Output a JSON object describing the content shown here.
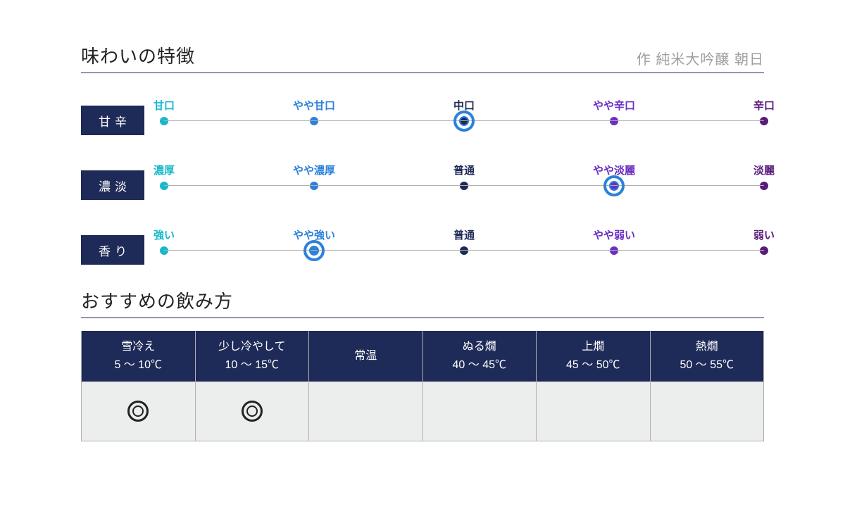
{
  "header": {
    "title": "味わいの特徴",
    "subtitle": "作 純米大吟醸 朝日"
  },
  "palette": {
    "navy": "#1e2a57",
    "tick_colors": [
      "#17b8cc",
      "#2c82d8",
      "#1e2a57",
      "#6a2fc5",
      "#5a1c7a"
    ],
    "ring_color": "#2c82d8",
    "grid": "#b0b0b0",
    "body_bg": "#eceded",
    "mark_color": "#222222"
  },
  "scales": [
    {
      "name": "甘辛",
      "ticks": [
        "甘口",
        "やや甘口",
        "中口",
        "やや辛口",
        "辛口"
      ],
      "selected": 2
    },
    {
      "name": "濃淡",
      "ticks": [
        "濃厚",
        "やや濃厚",
        "普通",
        "やや淡麗",
        "淡麗"
      ],
      "selected": 3
    },
    {
      "name": "香り",
      "ticks": [
        "強い",
        "やや強い",
        "普通",
        "やや弱い",
        "弱い"
      ],
      "selected": 1
    }
  ],
  "serving": {
    "title": "おすすめの飲み方",
    "columns": [
      {
        "label": "雪冷え",
        "range": "5 〜 10℃",
        "recommended": true
      },
      {
        "label": "少し冷やして",
        "range": "10 〜 15℃",
        "recommended": true
      },
      {
        "label": "常温",
        "range": "",
        "recommended": false
      },
      {
        "label": "ぬる燗",
        "range": "40 〜 45℃",
        "recommended": false
      },
      {
        "label": "上燗",
        "range": "45 〜 50℃",
        "recommended": false
      },
      {
        "label": "熱燗",
        "range": "50 〜 55℃",
        "recommended": false
      }
    ]
  }
}
